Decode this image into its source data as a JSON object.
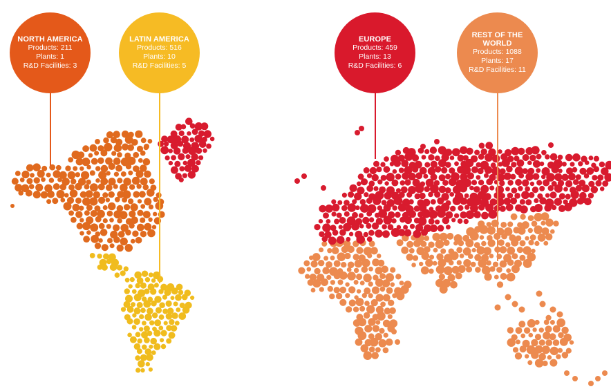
{
  "regions": [
    {
      "id": "north-america",
      "title": "NORTH AMERICA",
      "lines": [
        "Products: 211",
        "Plants: 1",
        "R&D Facilities: 3"
      ],
      "color": "#e4591a"
    },
    {
      "id": "latin-america",
      "title": "LATIN AMERICA",
      "lines": [
        "Products: 516",
        "Plants: 10",
        "R&D Facilities: 5"
      ],
      "color": "#f6bb24"
    },
    {
      "id": "europe",
      "title": "EUROPE",
      "lines": [
        "Products: 459",
        "Plants: 13",
        "R&D Facilities: 6"
      ],
      "color": "#d9192c"
    },
    {
      "id": "rest-of-world",
      "title": "REST OF THE WORLD",
      "lines": [
        "Products: 1088",
        "Plants: 17",
        "R&D Facilities: 11"
      ],
      "color": "#ec8a4f"
    }
  ],
  "dot_colors": {
    "north_america": "#e06a1e",
    "greenland": "#d81b2e",
    "latin_america": "#f0bc1e",
    "europe": "#d81b2e",
    "rest_of_world": "#ec8a4f"
  }
}
